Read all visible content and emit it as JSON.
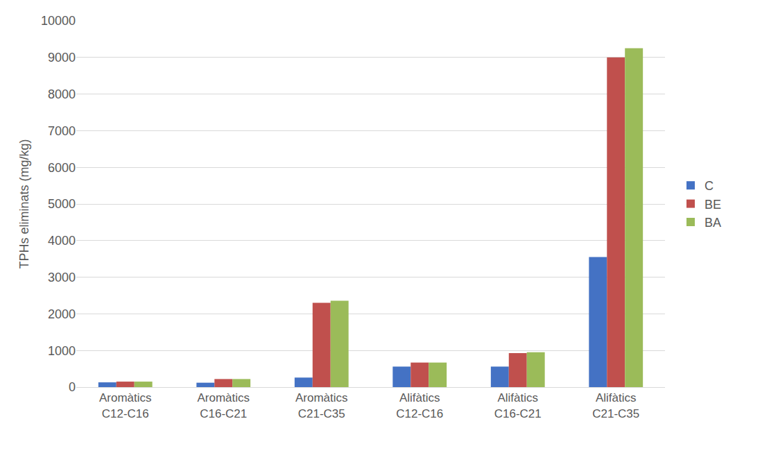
{
  "chart_data": {
    "type": "bar",
    "y_label": "TPHs eliminats (mg/kg)",
    "categories": [
      "Aromàtics C12-C16",
      "Aromàtics C16-C21",
      "Aromàtics C21-C35",
      "Alifàtics C12-C16",
      "Alifàtics C16-C21",
      "Alifàtics C21-C35"
    ],
    "series": [
      {
        "name": "C",
        "color": "#4472c4",
        "values": [
          130,
          120,
          260,
          560,
          560,
          3550
        ]
      },
      {
        "name": "BE",
        "color": "#c0504d",
        "values": [
          150,
          220,
          2300,
          670,
          930,
          9000
        ]
      },
      {
        "name": "BA",
        "color": "#9bbb59",
        "values": [
          150,
          220,
          2360,
          670,
          950,
          9250
        ]
      }
    ],
    "ylim": [
      0,
      10000
    ],
    "yticks": [
      0,
      1000,
      2000,
      3000,
      4000,
      5000,
      6000,
      7000,
      8000,
      9000,
      10000
    ],
    "grid": true,
    "legend": "right"
  }
}
